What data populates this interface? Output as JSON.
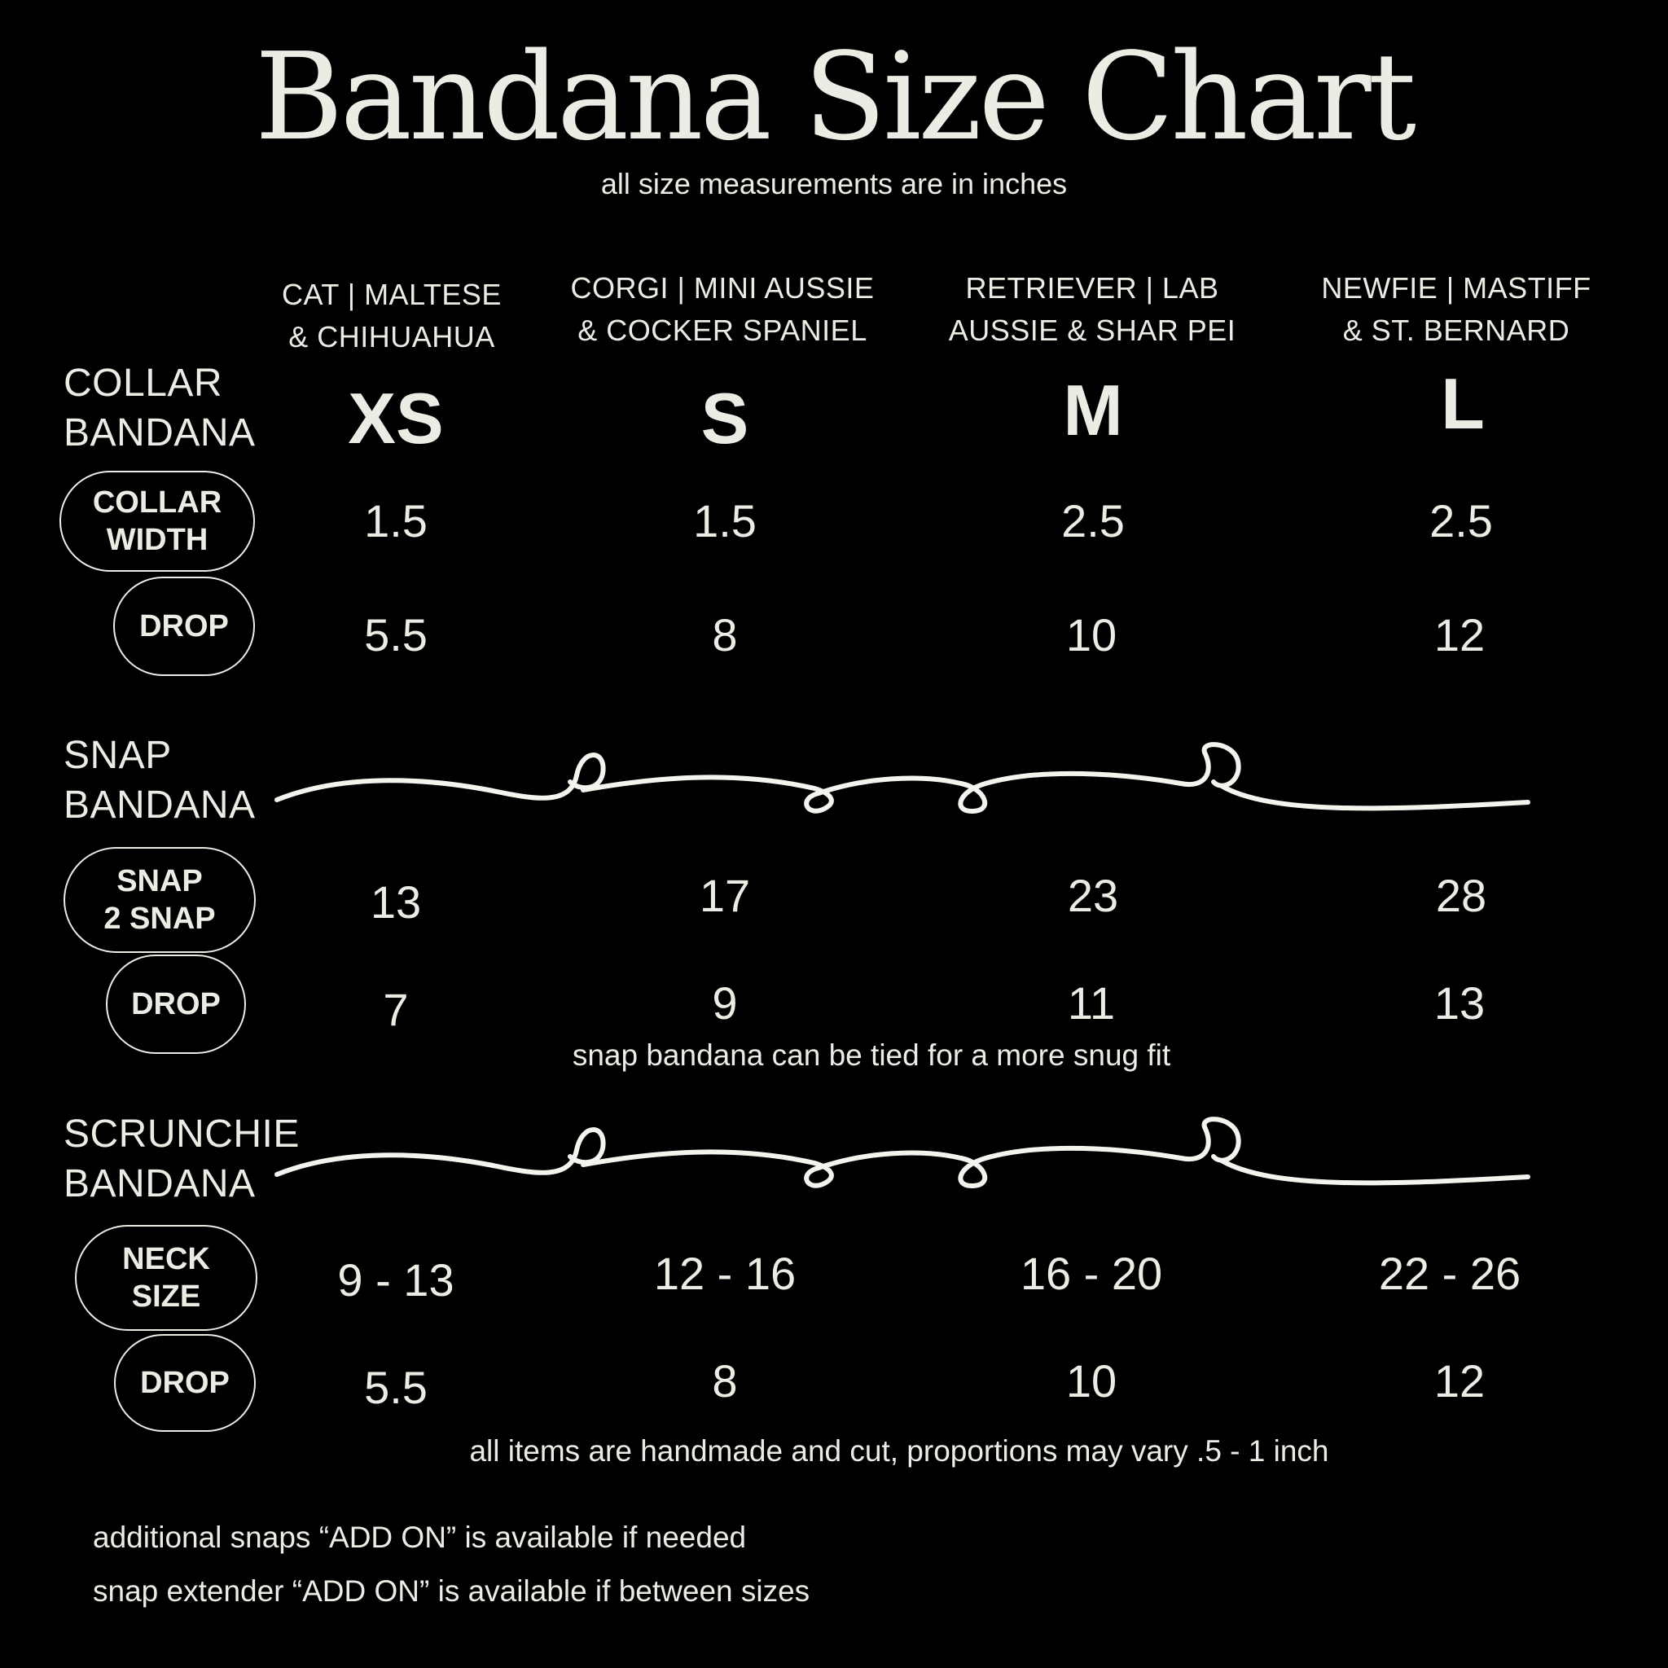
{
  "header": {
    "title": "Bandana Size Chart",
    "subtitle": "all size measurements are in inches"
  },
  "columns": [
    {
      "breed_line1": "CAT | MALTESE",
      "breed_line2": "& CHIHUAHUA",
      "size": "XS"
    },
    {
      "breed_line1": "CORGI | MINI AUSSIE",
      "breed_line2": "& COCKER SPANIEL",
      "size": "S"
    },
    {
      "breed_line1": "RETRIEVER | LAB",
      "breed_line2": "AUSSIE & SHAR PEI",
      "size": "M"
    },
    {
      "breed_line1": "NEWFIE | MASTIFF",
      "breed_line2": "& ST. BERNARD",
      "size": "L"
    }
  ],
  "collar": {
    "title_line1": "COLLAR",
    "title_line2": "BANDANA",
    "rows": [
      {
        "label_line1": "COLLAR",
        "label_line2": "WIDTH",
        "values": [
          "1.5",
          "1.5",
          "2.5",
          "2.5"
        ]
      },
      {
        "label_line1": "DROP",
        "label_line2": "",
        "values": [
          "5.5",
          "8",
          "10",
          "12"
        ]
      }
    ]
  },
  "snap": {
    "title_line1": "SNAP",
    "title_line2": "BANDANA",
    "rows": [
      {
        "label_line1": "SNAP",
        "label_line2": "2 SNAP",
        "values": [
          "13",
          "17",
          "23",
          "28"
        ]
      },
      {
        "label_line1": "DROP",
        "label_line2": "",
        "values": [
          "7",
          "9",
          "11",
          "13"
        ]
      }
    ],
    "note": "snap bandana can be tied for a more snug fit"
  },
  "scrunchie": {
    "title_line1": "SCRUNCHIE",
    "title_line2": "BANDANA",
    "rows": [
      {
        "label_line1": "NECK",
        "label_line2": "SIZE",
        "values": [
          "9 - 13",
          "12 - 16",
          "16 - 20",
          "22 - 26"
        ]
      },
      {
        "label_line1": "DROP",
        "label_line2": "",
        "values": [
          "5.5",
          "8",
          "10",
          "12"
        ]
      }
    ],
    "note": "all items are handmade and cut, proportions may vary .5 - 1 inch"
  },
  "footer": {
    "line1": "additional snaps “ADD ON” is available if needed",
    "line2": "snap extender “ADD ON”  is available if between sizes"
  },
  "colors": {
    "background": "#000000",
    "text": "#ecebe4"
  }
}
